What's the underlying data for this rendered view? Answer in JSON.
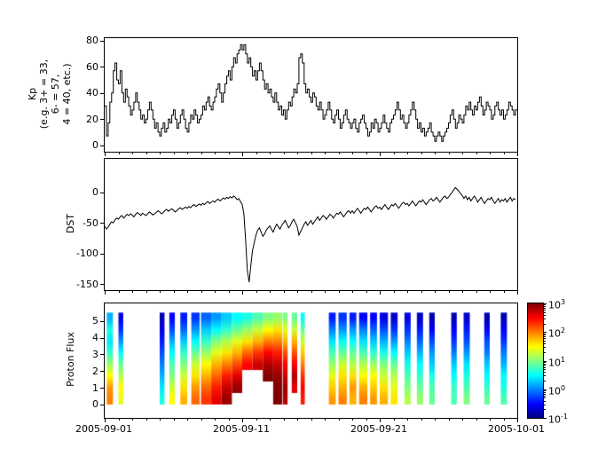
{
  "figure": {
    "background": "#ffffff",
    "line_color": "#000000"
  },
  "x_axis": {
    "tick_labels": [
      "2005-09-01",
      "2005-09-11",
      "2005-09-21",
      "2005-10-01"
    ],
    "tick_days": [
      0,
      10,
      20,
      30
    ],
    "minor_interval_days": 1,
    "range_days": 30
  },
  "colorbar": {
    "log_min": -1,
    "log_max": 3,
    "tick_exponents": [
      3,
      2,
      1,
      0,
      -1
    ],
    "colormap": "jet"
  },
  "chart_data": [
    {
      "id": "kp",
      "type": "line",
      "style": "step",
      "ylabel": "Kp\n(e.g. 3+ = 33,\n6- = 57,\n4 = 40, etc.)",
      "ylim": [
        -5,
        82
      ],
      "yticks": [
        0,
        20,
        40,
        60,
        80
      ],
      "ytick_labels": [
        "0",
        "20",
        "40",
        "60",
        "80"
      ],
      "sample_interval_days": 0.125,
      "values": [
        30,
        7,
        17,
        33,
        40,
        57,
        63,
        50,
        47,
        57,
        40,
        33,
        43,
        37,
        30,
        23,
        27,
        33,
        40,
        33,
        27,
        20,
        23,
        17,
        20,
        27,
        33,
        27,
        20,
        13,
        17,
        10,
        7,
        13,
        17,
        10,
        13,
        20,
        17,
        23,
        27,
        20,
        13,
        17,
        23,
        27,
        20,
        13,
        10,
        17,
        23,
        20,
        27,
        23,
        17,
        20,
        23,
        30,
        27,
        33,
        37,
        30,
        27,
        33,
        37,
        43,
        47,
        40,
        33,
        40,
        47,
        53,
        57,
        50,
        60,
        67,
        63,
        70,
        73,
        77,
        73,
        77,
        70,
        63,
        67,
        60,
        53,
        57,
        50,
        57,
        63,
        57,
        50,
        43,
        47,
        40,
        43,
        37,
        33,
        40,
        33,
        27,
        30,
        23,
        27,
        20,
        27,
        33,
        30,
        37,
        43,
        40,
        47,
        67,
        70,
        63,
        47,
        40,
        43,
        37,
        33,
        40,
        37,
        30,
        27,
        33,
        27,
        20,
        23,
        27,
        33,
        27,
        20,
        17,
        23,
        27,
        20,
        13,
        17,
        23,
        27,
        20,
        17,
        13,
        17,
        20,
        13,
        10,
        17,
        20,
        23,
        17,
        13,
        7,
        10,
        17,
        13,
        20,
        17,
        10,
        13,
        17,
        23,
        17,
        13,
        10,
        17,
        20,
        23,
        27,
        33,
        27,
        20,
        23,
        17,
        13,
        17,
        23,
        27,
        33,
        27,
        20,
        13,
        17,
        10,
        13,
        7,
        10,
        13,
        17,
        10,
        7,
        3,
        7,
        10,
        7,
        3,
        7,
        10,
        13,
        17,
        23,
        27,
        20,
        13,
        17,
        23,
        20,
        17,
        23,
        30,
        27,
        33,
        27,
        23,
        30,
        27,
        33,
        37,
        30,
        23,
        27,
        33,
        30,
        27,
        20,
        23,
        30,
        33,
        27,
        23,
        27,
        20,
        23,
        27,
        33,
        30,
        27,
        23,
        27
      ]
    },
    {
      "id": "dst",
      "type": "line",
      "style": "line",
      "ylabel": "DST",
      "ylim": [
        -160,
        55
      ],
      "yticks": [
        0,
        -50,
        -100,
        -150
      ],
      "ytick_labels": [
        "0",
        "-50",
        "-100",
        "-150"
      ],
      "sample_interval_days": 0.125,
      "values": [
        -55,
        -60,
        -57,
        -52,
        -48,
        -50,
        -45,
        -42,
        -44,
        -40,
        -38,
        -42,
        -39,
        -36,
        -38,
        -35,
        -37,
        -40,
        -36,
        -33,
        -35,
        -38,
        -34,
        -36,
        -38,
        -35,
        -32,
        -34,
        -37,
        -35,
        -33,
        -30,
        -32,
        -35,
        -33,
        -30,
        -28,
        -31,
        -29,
        -27,
        -29,
        -32,
        -30,
        -27,
        -25,
        -28,
        -26,
        -24,
        -26,
        -23,
        -25,
        -22,
        -20,
        -23,
        -21,
        -19,
        -21,
        -18,
        -20,
        -17,
        -15,
        -18,
        -16,
        -14,
        -16,
        -13,
        -11,
        -14,
        -12,
        -9,
        -11,
        -8,
        -10,
        -7,
        -9,
        -6,
        -8,
        -12,
        -10,
        -15,
        -20,
        -35,
        -80,
        -128,
        -147,
        -120,
        -95,
        -82,
        -70,
        -62,
        -58,
        -65,
        -72,
        -68,
        -62,
        -58,
        -55,
        -60,
        -65,
        -58,
        -52,
        -56,
        -60,
        -54,
        -50,
        -46,
        -52,
        -58,
        -54,
        -48,
        -44,
        -50,
        -56,
        -70,
        -64,
        -58,
        -52,
        -48,
        -54,
        -50,
        -46,
        -52,
        -48,
        -44,
        -40,
        -46,
        -42,
        -38,
        -40,
        -44,
        -40,
        -36,
        -38,
        -42,
        -38,
        -34,
        -36,
        -32,
        -36,
        -40,
        -36,
        -32,
        -30,
        -34,
        -30,
        -34,
        -30,
        -26,
        -30,
        -34,
        -30,
        -26,
        -28,
        -24,
        -28,
        -32,
        -28,
        -24,
        -22,
        -26,
        -24,
        -28,
        -24,
        -20,
        -24,
        -28,
        -24,
        -20,
        -22,
        -18,
        -22,
        -26,
        -22,
        -18,
        -16,
        -20,
        -18,
        -22,
        -18,
        -14,
        -18,
        -22,
        -18,
        -14,
        -16,
        -12,
        -16,
        -20,
        -16,
        -12,
        -10,
        -14,
        -12,
        -8,
        -12,
        -16,
        -12,
        -8,
        -6,
        -10,
        -8,
        -4,
        0,
        4,
        8,
        5,
        2,
        -2,
        -5,
        -10,
        -6,
        -12,
        -8,
        -14,
        -10,
        -6,
        -10,
        -16,
        -12,
        -8,
        -14,
        -18,
        -14,
        -10,
        -12,
        -8,
        -14,
        -18,
        -14,
        -10,
        -16,
        -12,
        -14,
        -10,
        -16,
        -12,
        -8,
        -14,
        -10,
        -12
      ]
    },
    {
      "id": "flux",
      "type": "heatmap",
      "ylabel": "Proton Flux",
      "ylim": [
        -0.8,
        6.05
      ],
      "yticks": [
        0,
        1,
        2,
        3,
        4,
        5
      ],
      "ytick_labels": [
        "0",
        "1",
        "2",
        "3",
        "4",
        "5"
      ],
      "bin_height": 0.6875,
      "scale": {
        "log_min": -1,
        "log_max": 3
      },
      "colormap": "jet",
      "columns": [
        {
          "t": 0.15,
          "w": 0.45,
          "v": [
            2.0,
            1.9,
            1.5,
            1.1,
            0.7,
            0.4,
            0.6,
            0.2
          ]
        },
        {
          "t": 1.0,
          "w": 0.35,
          "v": [
            1.4,
            1.5,
            1.2,
            0.9,
            0.5,
            0.1,
            -0.3,
            -0.6
          ]
        },
        {
          "t": 4.0,
          "w": 0.35,
          "v": [
            0.6,
            0.4,
            0.2,
            0.0,
            -0.2,
            -0.4,
            -0.6,
            -0.8
          ]
        },
        {
          "t": 4.7,
          "w": 0.4,
          "v": [
            1.5,
            1.3,
            1.0,
            0.8,
            0.5,
            0.2,
            -0.2,
            -0.5
          ]
        },
        {
          "t": 5.5,
          "w": 0.5,
          "v": [
            1.8,
            1.6,
            1.3,
            1.0,
            0.7,
            0.3,
            -0.1,
            -0.4
          ]
        },
        {
          "t": 6.3,
          "w": 0.6,
          "v": [
            2.1,
            1.9,
            1.6,
            1.3,
            0.9,
            0.5,
            0.1,
            -0.3
          ]
        },
        {
          "t": 7.0,
          "w": 0.75,
          "v": [
            2.3,
            2.1,
            1.8,
            1.5,
            1.1,
            0.7,
            0.3,
            -0.1
          ]
        },
        {
          "t": 7.75,
          "w": 0.75,
          "v": [
            2.6,
            2.4,
            2.1,
            1.8,
            1.4,
            1.0,
            0.5,
            0.1
          ]
        },
        {
          "t": 8.5,
          "w": 0.75,
          "v": [
            2.9,
            2.7,
            2.4,
            2.0,
            1.6,
            1.2,
            0.7,
            0.3
          ]
        },
        {
          "t": 9.25,
          "w": 0.75,
          "v": [
            null,
            2.9,
            2.6,
            2.2,
            1.8,
            1.4,
            0.9,
            0.5
          ]
        },
        {
          "t": 10.0,
          "w": 0.75,
          "v": [
            null,
            null,
            null,
            2.5,
            2.1,
            1.6,
            1.1,
            0.6
          ]
        },
        {
          "t": 10.75,
          "w": 0.75,
          "v": [
            null,
            null,
            null,
            2.7,
            2.3,
            1.8,
            1.3,
            0.8
          ]
        },
        {
          "t": 11.5,
          "w": 0.75,
          "v": [
            null,
            null,
            3.0,
            2.8,
            2.5,
            2.0,
            1.5,
            1.0
          ]
        },
        {
          "t": 12.25,
          "w": 0.65,
          "v": [
            3.0,
            3.0,
            2.9,
            2.7,
            2.4,
            2.0,
            1.6,
            1.1
          ]
        },
        {
          "t": 12.95,
          "w": 0.35,
          "v": [
            2.8,
            2.9,
            2.7,
            2.5,
            2.2,
            1.8,
            1.4,
            1.0
          ]
        },
        {
          "t": 13.6,
          "w": 0.4,
          "v": [
            null,
            2.6,
            2.8,
            2.5,
            2.2,
            1.8,
            1.3,
            0.9
          ]
        },
        {
          "t": 14.25,
          "w": 0.3,
          "v": [
            2.4,
            2.5,
            2.3,
            2.0,
            1.7,
            1.3,
            0.9,
            0.5
          ]
        },
        {
          "t": 16.3,
          "w": 0.5,
          "v": [
            1.9,
            1.7,
            1.4,
            1.1,
            0.8,
            0.4,
            0.0,
            -0.4
          ]
        },
        {
          "t": 17.0,
          "w": 0.6,
          "v": [
            2.0,
            1.8,
            1.6,
            1.3,
            0.9,
            0.5,
            0.1,
            -0.3
          ]
        },
        {
          "t": 17.8,
          "w": 0.5,
          "v": [
            1.8,
            1.9,
            1.6,
            1.2,
            0.9,
            0.5,
            0.1,
            -0.4
          ]
        },
        {
          "t": 18.5,
          "w": 0.6,
          "v": [
            2.0,
            1.8,
            1.5,
            1.2,
            0.8,
            0.4,
            0.0,
            -0.5
          ]
        },
        {
          "t": 19.3,
          "w": 0.5,
          "v": [
            1.9,
            1.7,
            1.5,
            1.1,
            0.7,
            0.3,
            -0.1,
            -0.5
          ]
        },
        {
          "t": 20.0,
          "w": 0.6,
          "v": [
            1.8,
            1.6,
            1.3,
            1.0,
            0.6,
            0.2,
            -0.2,
            -0.6
          ]
        },
        {
          "t": 20.8,
          "w": 0.5,
          "v": [
            1.6,
            1.4,
            1.2,
            0.9,
            0.5,
            0.1,
            -0.3,
            -0.7
          ]
        },
        {
          "t": 21.8,
          "w": 0.45,
          "v": [
            1.2,
            1.0,
            0.8,
            0.6,
            0.3,
            0.0,
            -0.3,
            -0.6
          ]
        },
        {
          "t": 22.7,
          "w": 0.45,
          "v": [
            1.1,
            0.9,
            0.7,
            0.5,
            0.2,
            -0.1,
            -0.4,
            -0.7
          ]
        },
        {
          "t": 23.6,
          "w": 0.4,
          "v": [
            0.9,
            0.8,
            0.6,
            0.3,
            0.1,
            -0.2,
            -0.5,
            -0.8
          ]
        },
        {
          "t": 25.2,
          "w": 0.4,
          "v": [
            0.8,
            0.7,
            0.5,
            0.3,
            0.0,
            -0.3,
            -0.5,
            -0.8
          ]
        },
        {
          "t": 26.1,
          "w": 0.45,
          "v": [
            1.0,
            0.8,
            0.6,
            0.4,
            0.1,
            -0.2,
            -0.4,
            -0.7
          ]
        },
        {
          "t": 27.6,
          "w": 0.4,
          "v": [
            0.9,
            0.7,
            0.5,
            0.3,
            0.0,
            -0.2,
            -0.5,
            -0.8
          ]
        },
        {
          "t": 28.8,
          "w": 0.45,
          "v": [
            0.8,
            0.6,
            0.5,
            0.2,
            0.0,
            -0.3,
            -0.5,
            -0.8
          ]
        }
      ]
    }
  ]
}
